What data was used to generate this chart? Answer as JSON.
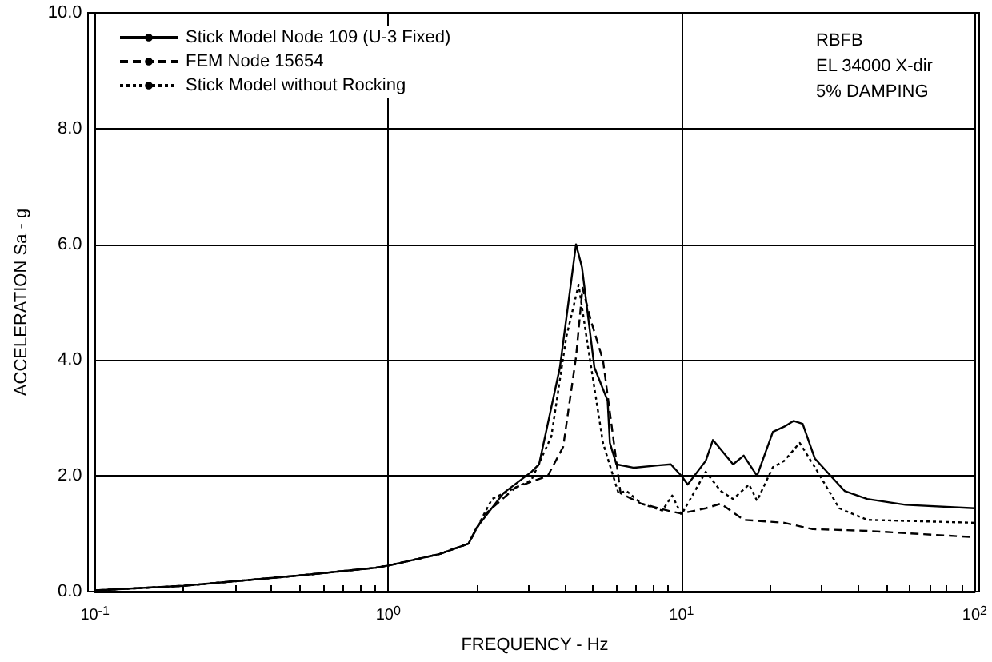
{
  "chart_data": {
    "type": "line",
    "xlabel": "FREQUENCY - Hz",
    "ylabel": "ACCELERATION Sa - g",
    "log": "x",
    "grid": true,
    "legend": "top left",
    "marker": "none",
    "xlim": [
      0.1,
      100
    ],
    "xticks": [
      {
        "value": 0.1,
        "label": "10$^{-1}$"
      },
      {
        "value": 1,
        "label": "10$^{0}$"
      },
      {
        "value": 10,
        "label": "10$^{1}$"
      },
      {
        "value": 100,
        "label": "10$^{2}$"
      }
    ],
    "ylim": [
      0,
      10
    ],
    "yticks": [
      {
        "value": 0,
        "label": "0.0"
      },
      {
        "value": 2,
        "label": "2.0"
      },
      {
        "value": 4,
        "label": "4.0"
      },
      {
        "value": 6,
        "label": "6.0"
      },
      {
        "value": 8,
        "label": "8.0"
      },
      {
        "value": 10,
        "label": "10.0"
      }
    ],
    "annotations": [
      "RBFB",
      "EL 34000 X-dir",
      "5% DAMPING"
    ],
    "series": [
      {
        "name": "Stick Model Node 109 (U-3 Fixed)",
        "color": "#000000",
        "line_style": "solid",
        "x": [
          0.1,
          0.2,
          0.5,
          0.9,
          1.0,
          1.5,
          1.88,
          2.0,
          2.47,
          3.08,
          3.27,
          3.85,
          4.37,
          4.58,
          5.05,
          5.6,
          5.7,
          6.0,
          6.9,
          8.3,
          9.2,
          10,
          10.5,
          12.1,
          12.8,
          15,
          16.3,
          18.1,
          20.5,
          22.4,
          24.1,
          25.9,
          28.5,
          32,
          36,
          43,
          58,
          100
        ],
        "values": [
          0.02,
          0.1,
          0.28,
          0.41,
          0.45,
          0.65,
          0.83,
          1.1,
          1.7,
          2.07,
          2.2,
          3.87,
          6.0,
          5.6,
          3.87,
          3.3,
          2.57,
          2.2,
          2.14,
          2.18,
          2.2,
          2.0,
          1.85,
          2.26,
          2.62,
          2.2,
          2.35,
          2.0,
          2.76,
          2.85,
          2.95,
          2.9,
          2.3,
          2.02,
          1.74,
          1.6,
          1.5,
          1.44
        ]
      },
      {
        "name": "FEM Node 15654",
        "color": "#000000",
        "line_style": "dashed",
        "x": [
          0.1,
          0.2,
          0.5,
          0.9,
          1.0,
          1.5,
          1.88,
          2.13,
          2.72,
          3.5,
          3.95,
          4.37,
          4.6,
          4.9,
          5.4,
          6.2,
          7.3,
          9.3,
          10,
          12.1,
          13.6,
          16.3,
          22.4,
          28,
          43,
          100
        ],
        "values": [
          0.02,
          0.1,
          0.28,
          0.41,
          0.45,
          0.65,
          0.83,
          1.33,
          1.8,
          2.0,
          2.5,
          4.05,
          5.25,
          4.7,
          4.0,
          1.7,
          1.52,
          1.38,
          1.35,
          1.44,
          1.52,
          1.24,
          1.19,
          1.08,
          1.05,
          0.94
        ]
      },
      {
        "name": "Stick Model without Rocking",
        "color": "#000000",
        "line_style": "dotted",
        "x": [
          0.1,
          0.2,
          0.5,
          0.9,
          1.0,
          1.5,
          1.88,
          2.26,
          3.08,
          3.6,
          4.05,
          4.46,
          4.8,
          5.4,
          6.1,
          6.5,
          7.3,
          8.6,
          9.3,
          10,
          12.1,
          13.6,
          15,
          17,
          18.1,
          20.5,
          22.4,
          25.3,
          28.5,
          34.5,
          43,
          100
        ],
        "values": [
          0.02,
          0.1,
          0.28,
          0.41,
          0.45,
          0.65,
          0.83,
          1.6,
          1.93,
          2.68,
          4.4,
          5.3,
          4.23,
          2.57,
          1.7,
          1.74,
          1.52,
          1.4,
          1.66,
          1.33,
          2.07,
          1.74,
          1.6,
          1.85,
          1.57,
          2.15,
          2.26,
          2.57,
          2.15,
          1.44,
          1.24,
          1.19
        ]
      }
    ]
  }
}
